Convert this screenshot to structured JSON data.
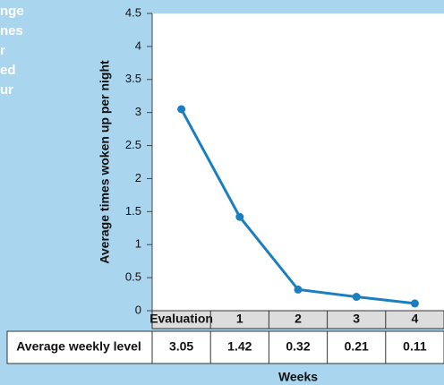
{
  "chart_data": {
    "type": "line",
    "side_text": [
      "nge",
      "nes",
      "r",
      "ed",
      "ur"
    ],
    "y_label": "Average times woken up per night",
    "x_label": "Weeks",
    "categories": [
      "Evaluation",
      "1",
      "2",
      "3",
      "4"
    ],
    "row_label": "Average weekly level",
    "values": [
      3.05,
      1.42,
      0.32,
      0.21,
      0.11
    ],
    "color": "#1a7fc1",
    "ylim": [
      0,
      4.5
    ],
    "yticks": [
      0,
      0.5,
      1,
      1.5,
      2,
      2.5,
      3,
      3.5,
      4,
      4.5
    ]
  }
}
